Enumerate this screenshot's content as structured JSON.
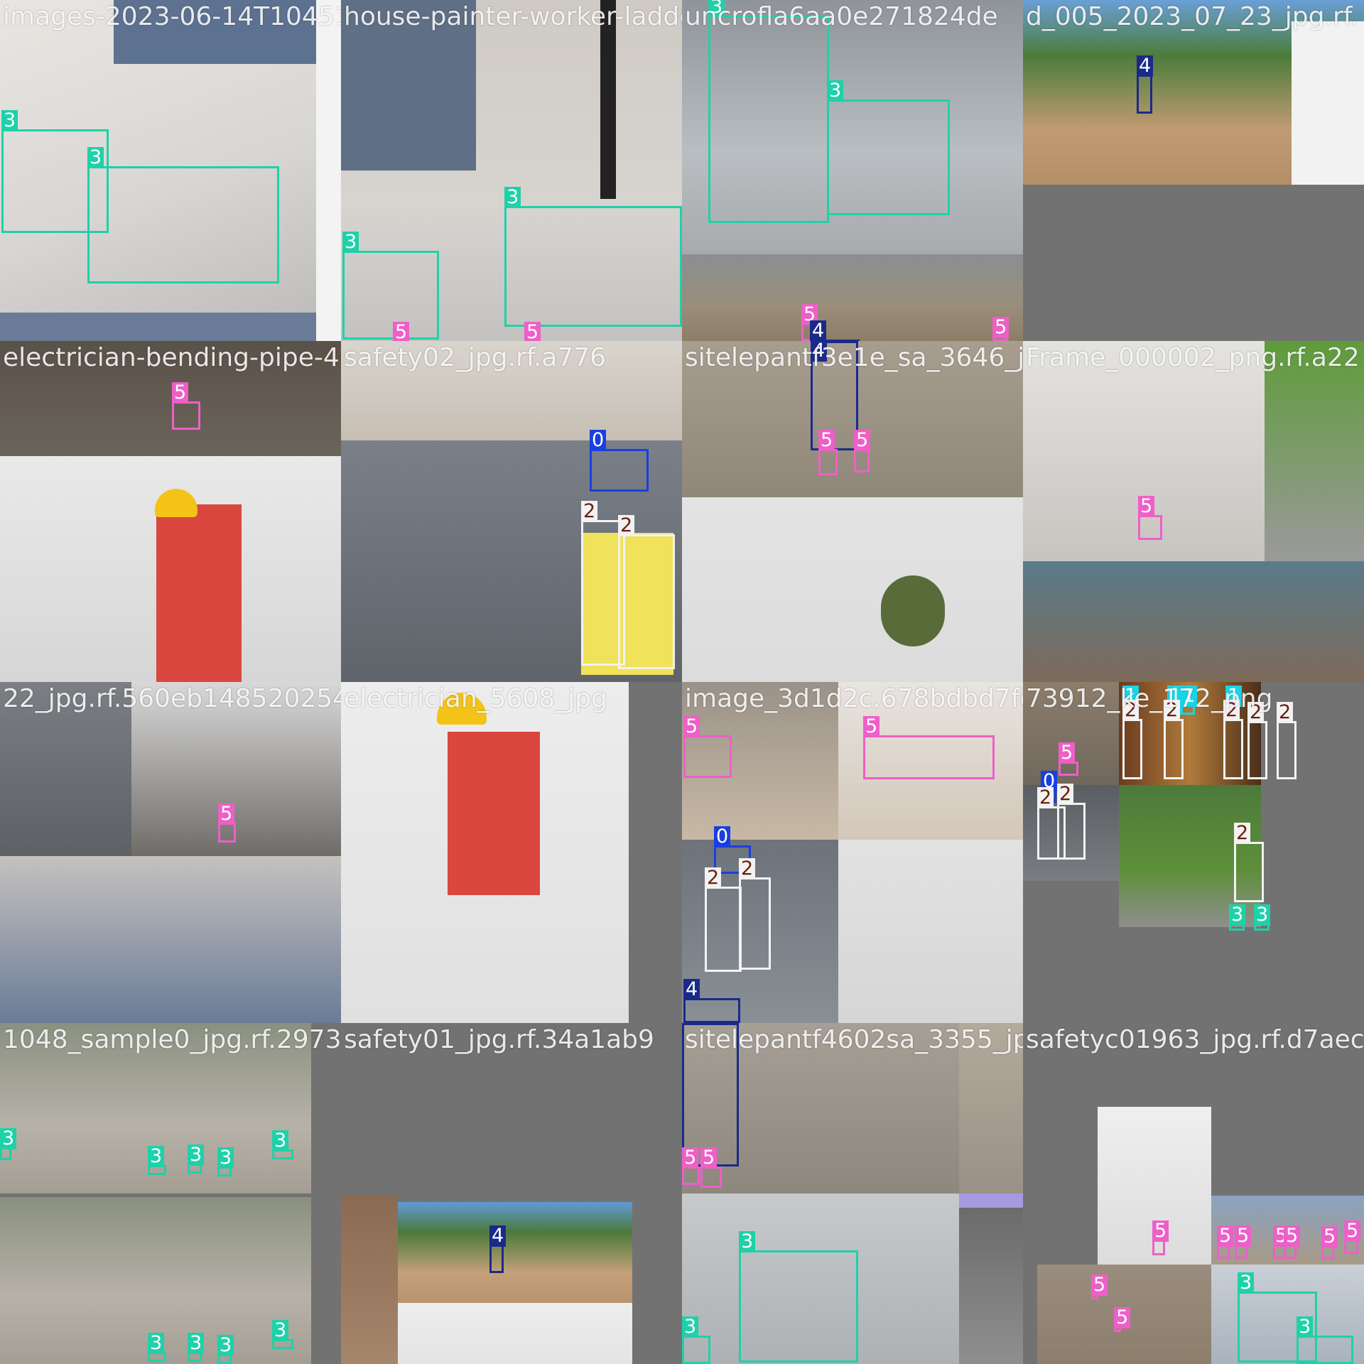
{
  "colors": {
    "0": "#1a3fe0",
    "1": "#19d3e6",
    "2": "#6b1f10",
    "3": "#1fd1a8",
    "4": "#1a2a8a",
    "5": "#ee5fc8",
    "box_2": "#f2f2f2",
    "background": "#727272"
  },
  "tiles": [
    {
      "filename": "images-2023-06-14T104518-440_jpg.rf.",
      "photo": "sneakers on concrete floor",
      "boxes": [
        {
          "cls": "3"
        },
        {
          "cls": "3"
        }
      ]
    },
    {
      "filename": "house-painter-worker-ladder-",
      "photo": "sneakers near ladder",
      "boxes": [
        {
          "cls": "3"
        },
        {
          "cls": "3"
        },
        {
          "cls": "5"
        },
        {
          "cls": "5"
        }
      ]
    },
    {
      "filename": "uncrofla6aa0e271824de",
      "photo": "mint sneakers and site",
      "boxes": [
        {
          "cls": "3"
        },
        {
          "cls": "3"
        },
        {
          "cls": "5"
        },
        {
          "cls": "4"
        },
        {
          "cls": "5"
        }
      ]
    },
    {
      "filename": "d_005_2023_07_23_jpg.rf.",
      "photo": "construction site with tents",
      "boxes": [
        {
          "cls": "4"
        }
      ]
    },
    {
      "filename": "electrician-bending-pipe-404",
      "photo": "electrician with tape measure",
      "boxes": [
        {
          "cls": "5"
        }
      ]
    },
    {
      "filename": "safety02_jpg.rf.a776",
      "photo": "factory worker with vest",
      "boxes": [
        {
          "cls": "0"
        },
        {
          "cls": "2"
        },
        {
          "cls": "2"
        }
      ]
    },
    {
      "filename": "sitelepantf3e1e_sa_3646_jpg",
      "photo": "worker on site and gloves",
      "boxes": [
        {
          "cls": "4"
        },
        {
          "cls": "5"
        },
        {
          "cls": "5"
        }
      ]
    },
    {
      "filename": "Frame_000002_png.rf.a22",
      "photo": "pipe bending and street",
      "boxes": [
        {
          "cls": "5"
        }
      ]
    },
    {
      "filename": "22_jpg.rf.560eb148520254d",
      "photo": "conveyor and pipe",
      "boxes": [
        {
          "cls": "5"
        }
      ]
    },
    {
      "filename": "electrician_5608_jpg",
      "photo": "electrician standing",
      "boxes": []
    },
    {
      "filename": "image_3d1d2c.678bdbd7fca",
      "photo": "boots and workers",
      "boxes": [
        {
          "cls": "5"
        },
        {
          "cls": "5"
        },
        {
          "cls": "0"
        },
        {
          "cls": "2"
        },
        {
          "cls": "2"
        },
        {
          "cls": "4"
        }
      ]
    },
    {
      "filename": "73912_ke_172_png",
      "photo": "workers and road",
      "boxes": [
        {
          "cls": "1"
        },
        {
          "cls": "1"
        },
        {
          "cls": "1"
        },
        {
          "cls": "1"
        },
        {
          "cls": "2"
        },
        {
          "cls": "2"
        },
        {
          "cls": "2"
        },
        {
          "cls": "2"
        },
        {
          "cls": "2"
        },
        {
          "cls": "5"
        },
        {
          "cls": "0"
        },
        {
          "cls": "2"
        },
        {
          "cls": "2"
        },
        {
          "cls": "2"
        },
        {
          "cls": "3"
        },
        {
          "cls": "3"
        }
      ]
    },
    {
      "filename": "1048_sample0_jpg.rf.29736",
      "photo": "women on stairs",
      "boxes": [
        {
          "cls": "3"
        },
        {
          "cls": "3"
        },
        {
          "cls": "3"
        },
        {
          "cls": "3"
        },
        {
          "cls": "3"
        },
        {
          "cls": "3"
        },
        {
          "cls": "3"
        },
        {
          "cls": "3"
        },
        {
          "cls": "3"
        }
      ]
    },
    {
      "filename": "safety01_jpg.rf.34a1ab9",
      "photo": "site collage",
      "boxes": [
        {
          "cls": "4"
        }
      ]
    },
    {
      "filename": "sitelepantf4602sa_3355_jpg",
      "photo": "dirt road and shoe",
      "boxes": [
        {
          "cls": "4"
        },
        {
          "cls": "5"
        },
        {
          "cls": "5"
        },
        {
          "cls": "3"
        },
        {
          "cls": "3"
        }
      ]
    },
    {
      "filename": "safetyc01963_jpg.rf.d7aecb",
      "photo": "worker collage",
      "boxes": [
        {
          "cls": "5"
        },
        {
          "cls": "5"
        },
        {
          "cls": "5"
        },
        {
          "cls": "5"
        },
        {
          "cls": "5"
        },
        {
          "cls": "5"
        },
        {
          "cls": "5"
        },
        {
          "cls": "5"
        },
        {
          "cls": "5"
        },
        {
          "cls": "3"
        },
        {
          "cls": "3"
        }
      ]
    }
  ]
}
